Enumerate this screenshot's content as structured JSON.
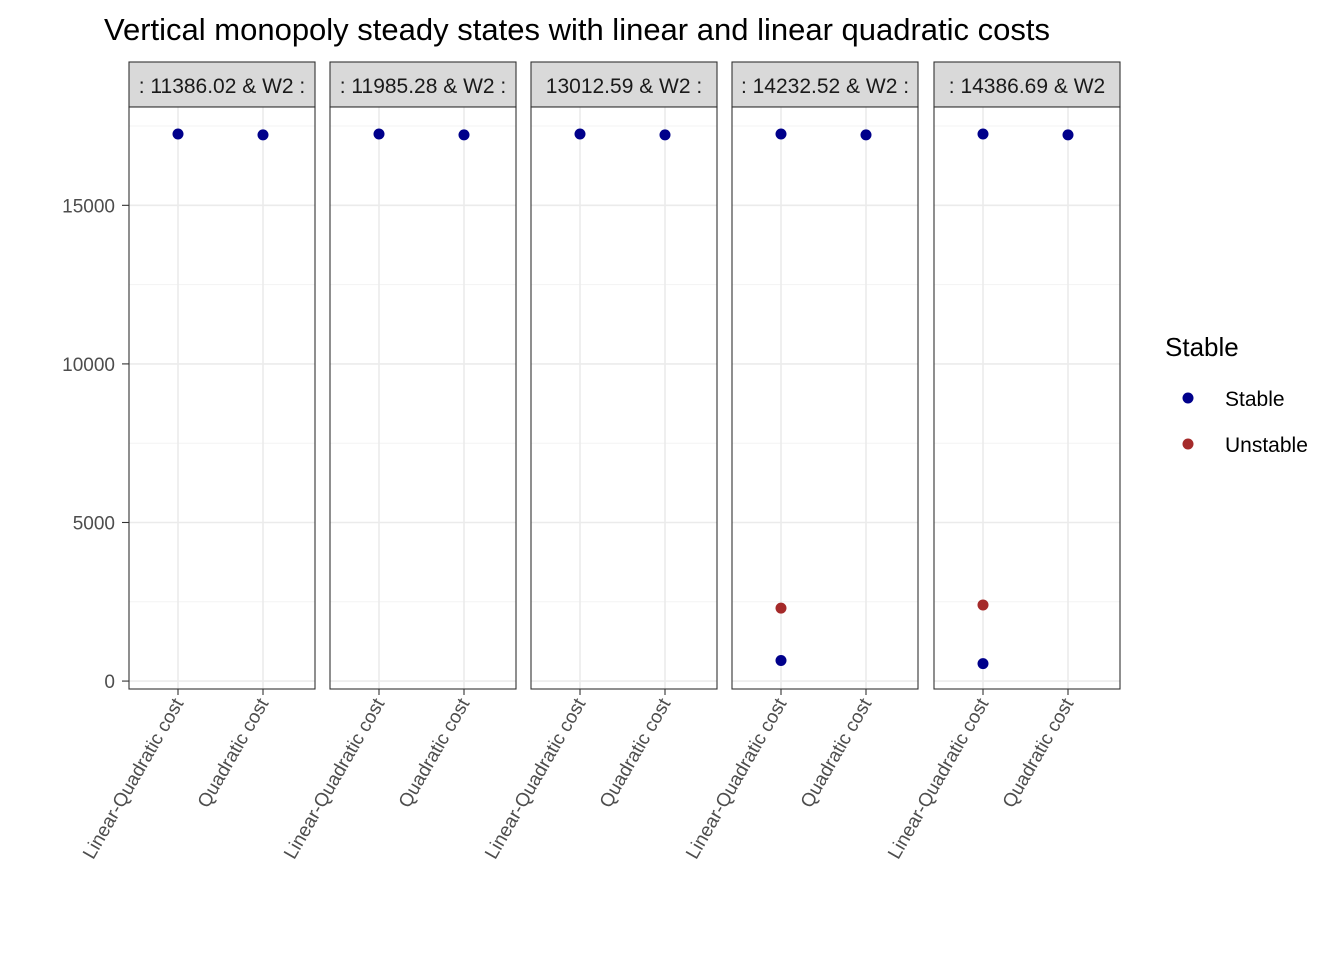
{
  "chart_data": {
    "type": "scatter",
    "title": "Vertical monopoly steady states with linear and linear quadratic costs",
    "xlabel": "",
    "ylabel": "",
    "categories": [
      "Linear-Quadratic cost",
      "Quadratic cost"
    ],
    "ylim": [
      -250,
      18100
    ],
    "yticks": [
      0,
      5000,
      10000,
      15000
    ],
    "ytick_labels": [
      "0",
      "5000",
      "10000",
      "15000"
    ],
    "grid": true,
    "legend": {
      "title": "Stable",
      "position": "right",
      "entries": [
        {
          "label": "Stable",
          "color": "#00008B"
        },
        {
          "label": "Unstable",
          "color": "#A52A2A"
        }
      ]
    },
    "facets": [
      {
        "strip": ": 11386.02 & W2 :",
        "points": [
          {
            "x": "Linear-Quadratic cost",
            "y": 17250,
            "status": "Stable"
          },
          {
            "x": "Quadratic cost",
            "y": 17220,
            "status": "Stable"
          }
        ]
      },
      {
        "strip": ": 11985.28 & W2 :",
        "points": [
          {
            "x": "Linear-Quadratic cost",
            "y": 17250,
            "status": "Stable"
          },
          {
            "x": "Quadratic cost",
            "y": 17220,
            "status": "Stable"
          }
        ]
      },
      {
        "strip": "13012.59 & W2 :",
        "points": [
          {
            "x": "Linear-Quadratic cost",
            "y": 17250,
            "status": "Stable"
          },
          {
            "x": "Quadratic cost",
            "y": 17220,
            "status": "Stable"
          }
        ]
      },
      {
        "strip": ": 14232.52 & W2 :",
        "points": [
          {
            "x": "Linear-Quadratic cost",
            "y": 17250,
            "status": "Stable"
          },
          {
            "x": "Quadratic cost",
            "y": 17220,
            "status": "Stable"
          },
          {
            "x": "Linear-Quadratic cost",
            "y": 2300,
            "status": "Unstable"
          },
          {
            "x": "Linear-Quadratic cost",
            "y": 650,
            "status": "Stable"
          }
        ]
      },
      {
        "strip": ": 14386.69 & W2",
        "points": [
          {
            "x": "Linear-Quadratic cost",
            "y": 17250,
            "status": "Stable"
          },
          {
            "x": "Quadratic cost",
            "y": 17220,
            "status": "Stable"
          },
          {
            "x": "Linear-Quadratic cost",
            "y": 2400,
            "status": "Unstable"
          },
          {
            "x": "Linear-Quadratic cost",
            "y": 550,
            "status": "Stable"
          }
        ]
      }
    ]
  }
}
